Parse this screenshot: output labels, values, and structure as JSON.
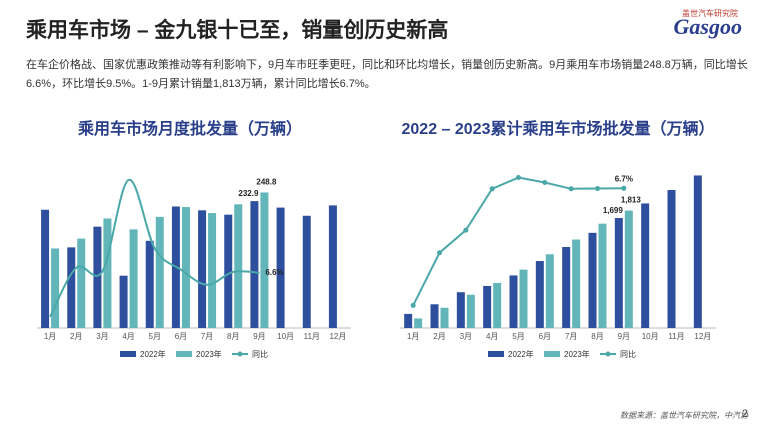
{
  "title": "乘用车市场 – 金九银十已至，销量创历史新高",
  "summary": "在车企价格战、国家优惠政策推动等有利影响下，9月车市旺季更旺，同比和环比均增长，销量创历史新高。9月乘用车市场销量248.8万辆，同比增长6.6%，环比增长9.5%。1-9月累计销量1,813万辆，累计同比增长6.7%。",
  "logo": {
    "text": "Gasgoo",
    "subtitle": "盖世汽车研究院"
  },
  "source": "数据来源：盖世汽车研究院，中汽协",
  "page_number": "2",
  "chart_data": [
    {
      "type": "bar",
      "title": "乘用车市场月度批发量（万辆）",
      "categories": [
        "1月",
        "2月",
        "3月",
        "4月",
        "5月",
        "6月",
        "7月",
        "8月",
        "9月",
        "10月",
        "11月",
        "12月"
      ],
      "ylim": [
        0,
        290
      ],
      "y2lim": [
        -42,
        97
      ],
      "markers": false,
      "smooth": true,
      "series": [
        {
          "name": "2022年",
          "color": "#2e4f9e",
          "values": [
            217,
            148,
            186,
            96,
            160,
            223,
            216,
            208,
            232.9,
            221,
            206,
            225
          ],
          "value_labels": [
            null,
            null,
            null,
            null,
            null,
            null,
            null,
            null,
            "232.9",
            null,
            null,
            null
          ]
        },
        {
          "name": "2023年",
          "color": "#62b5b8",
          "values": [
            146,
            164,
            201,
            181,
            204,
            222,
            211,
            227,
            248.8,
            null,
            null,
            null
          ],
          "value_labels": [
            null,
            null,
            null,
            null,
            null,
            null,
            null,
            null,
            "248.8",
            null,
            null,
            null
          ]
        },
        {
          "name": "同比",
          "type": "line",
          "axis": "y2",
          "color": "#4aa8a8",
          "values": [
            -32.2,
            11,
            7.9,
            88.3,
            27.9,
            9.3,
            -4,
            7.4,
            6.6,
            null,
            null,
            null
          ],
          "value_labels": [
            null,
            null,
            null,
            null,
            null,
            null,
            null,
            null,
            "6.6%",
            null,
            null,
            null
          ]
        }
      ]
    },
    {
      "type": "bar",
      "title": "2022 – 2023累计乘用车市场批发量（万辆）",
      "categories": [
        "1月",
        "2月",
        "3月",
        "4月",
        "5月",
        "6月",
        "7月",
        "8月",
        "9月",
        "10月",
        "11月",
        "12月"
      ],
      "ylim": [
        0,
        2440
      ],
      "y2lim": [
        -49,
        14
      ],
      "markers": true,
      "smooth": false,
      "series": [
        {
          "name": "2022年",
          "color": "#2e4f9e",
          "values": [
            217.7,
            366.4,
            552.9,
            649.4,
            811.6,
            1033.8,
            1251.2,
            1470,
            1699,
            1923.7,
            2131.1,
            2356
          ],
          "value_labels": [
            null,
            null,
            null,
            null,
            null,
            null,
            null,
            null,
            "1,699",
            null,
            null,
            null
          ]
        },
        {
          "name": "2023年",
          "color": "#62b5b8",
          "values": [
            147.4,
            312.5,
            513.7,
            695.4,
            901.5,
            1138.6,
            1366.3,
            1611.3,
            1813,
            null,
            null,
            null
          ],
          "value_labels": [
            null,
            null,
            null,
            null,
            null,
            null,
            null,
            null,
            "1,813",
            null,
            null,
            null
          ]
        },
        {
          "name": "同比",
          "type": "line",
          "axis": "y2",
          "color": "#4aa8a8",
          "values": [
            -40,
            -19,
            -10,
            6.5,
            11,
            9,
            6.5,
            6.6,
            6.7,
            null,
            null,
            null
          ],
          "value_labels": [
            null,
            null,
            null,
            null,
            null,
            null,
            null,
            null,
            "6.7%",
            null,
            null,
            null
          ]
        }
      ]
    }
  ]
}
